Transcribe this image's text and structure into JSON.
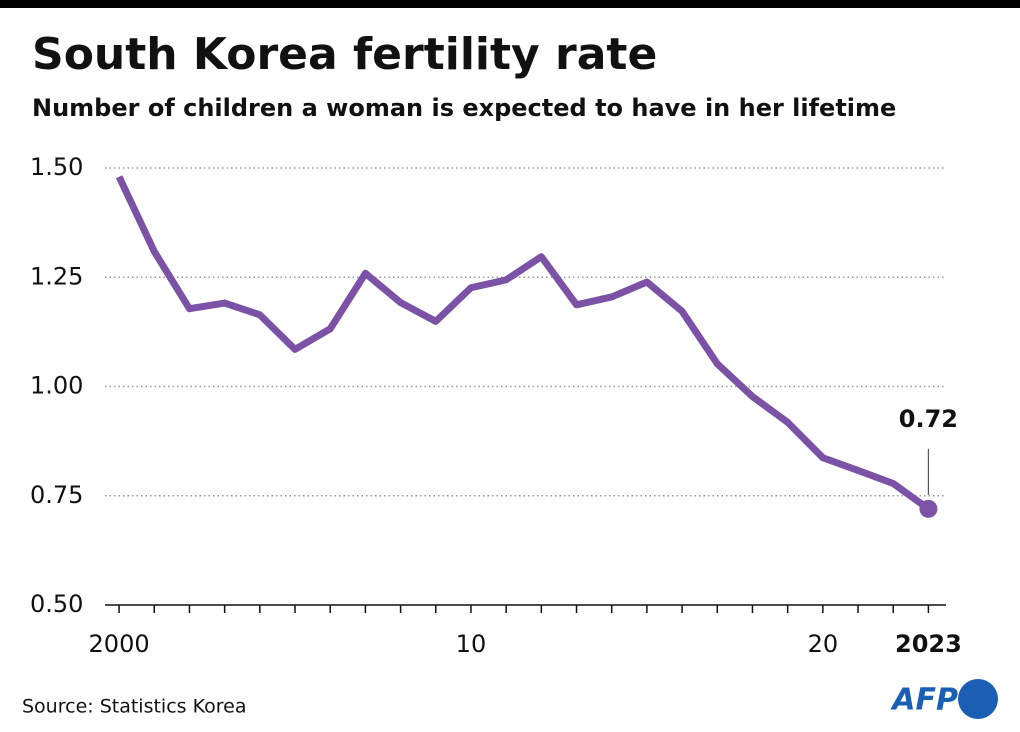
{
  "chart_data": {
    "type": "line",
    "title": "South Korea fertility rate",
    "subtitle": "Number of children a woman is expected to have in her lifetime",
    "source": "Source: Statistics Korea",
    "logo": "AFP",
    "x": [
      2000,
      2001,
      2002,
      2003,
      2004,
      2005,
      2006,
      2007,
      2008,
      2009,
      2010,
      2011,
      2012,
      2013,
      2014,
      2015,
      2016,
      2017,
      2018,
      2019,
      2020,
      2021,
      2022,
      2023
    ],
    "series": [
      {
        "color": "#7b52a6",
        "values": [
          1.48,
          1.309,
          1.178,
          1.191,
          1.164,
          1.085,
          1.132,
          1.259,
          1.192,
          1.149,
          1.226,
          1.244,
          1.297,
          1.187,
          1.205,
          1.239,
          1.172,
          1.052,
          0.977,
          0.918,
          0.837,
          0.808,
          0.778,
          0.72
        ]
      }
    ],
    "xlim": [
      1999.6,
      2023.5
    ],
    "xticks": [
      2000,
      {
        "value": 2001,
        "label": null
      },
      {
        "value": 2002,
        "label": null
      },
      {
        "value": 2003,
        "label": null
      },
      {
        "value": 2004,
        "label": null
      },
      {
        "value": 2005,
        "label": null
      },
      {
        "value": 2006,
        "label": null
      },
      {
        "value": 2007,
        "label": null
      },
      {
        "value": 2008,
        "label": null
      },
      {
        "value": 2009,
        "label": null
      },
      {
        "value": 2010,
        "label": "10"
      },
      {
        "value": 2011,
        "label": null
      },
      {
        "value": 2012,
        "label": null
      },
      {
        "value": 2013,
        "label": null
      },
      {
        "value": 2014,
        "label": null
      },
      {
        "value": 2015,
        "label": null
      },
      {
        "value": 2016,
        "label": null
      },
      {
        "value": 2017,
        "label": null
      },
      {
        "value": 2018,
        "label": null
      },
      {
        "value": 2019,
        "label": null
      },
      {
        "value": 2020,
        "label": "20"
      },
      {
        "value": 2021,
        "label": null
      },
      {
        "value": 2022,
        "label": null
      },
      2023
    ],
    "ylim": [
      0.5,
      1.5
    ],
    "yticks": [
      {
        "value": 0.5,
        "label": "0.50"
      },
      {
        "value": 0.75,
        "label": "0.75"
      },
      {
        "value": 1,
        "label": "1.00"
      },
      {
        "value": 1.25,
        "label": "1.25"
      },
      {
        "value": 1.5,
        "label": "1.50"
      }
    ],
    "grid": true
  }
}
